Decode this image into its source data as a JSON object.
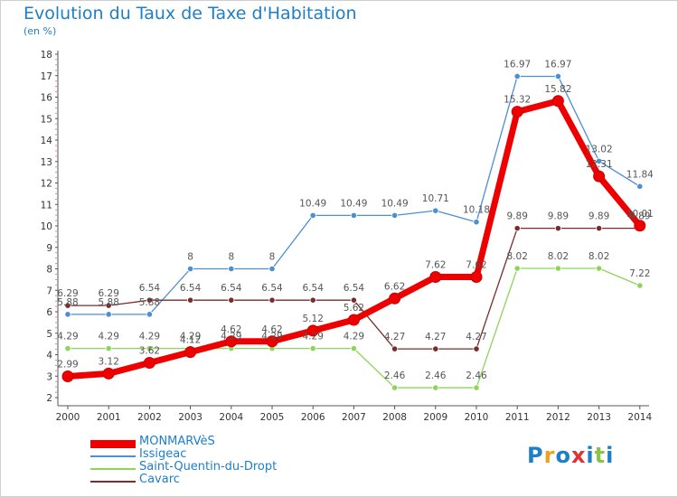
{
  "header": {
    "title": "Evolution du Taux de Taxe d'Habitation",
    "unit": "(en %)"
  },
  "logo": {
    "text": "Proxiti",
    "colors": [
      "#1e7ec8",
      "#f0a020",
      "#1e7ec8",
      "#e03030",
      "#1e7ec8",
      "#8bc34a",
      "#1e7ec8"
    ]
  },
  "chart_data": {
    "type": "line",
    "title": "Evolution du Taux de Taxe d'Habitation",
    "ylabel": "(en %)",
    "ylim": [
      2,
      18
    ],
    "yticks": [
      2,
      3,
      4,
      5,
      6,
      7,
      8,
      9,
      10,
      11,
      12,
      13,
      14,
      15,
      16,
      17,
      18
    ],
    "categories": [
      "2000",
      "2001",
      "2002",
      "2003",
      "2004",
      "2005",
      "2006",
      "2007",
      "2008",
      "2009",
      "2010",
      "2011",
      "2012",
      "2013",
      "2014"
    ],
    "grid": false,
    "legend": "bottom-left",
    "series": [
      {
        "name": "MONMARVèS",
        "color": "#ee0000",
        "labels": [
          "2.99",
          "3.12",
          "3.62",
          "4.12",
          "4.62",
          "4.62",
          "5.12",
          "5.62",
          "6.62",
          "7.62",
          "7.62",
          "15.32",
          "15.82",
          "12.31",
          "10.01"
        ],
        "values": [
          2.99,
          3.12,
          3.62,
          4.12,
          4.62,
          4.62,
          5.12,
          5.62,
          6.62,
          7.62,
          7.62,
          15.32,
          15.82,
          12.31,
          10.01
        ]
      },
      {
        "name": "Issigeac",
        "color": "#4d8fd0",
        "labels": [
          "5.88",
          "5.88",
          "5.88",
          "8",
          "8",
          "8",
          "10.49",
          "10.49",
          "10.49",
          "10.71",
          "10.18",
          "16.97",
          "16.97",
          "13.02",
          "11.84"
        ],
        "values": [
          5.88,
          5.88,
          5.88,
          8,
          8,
          8,
          10.49,
          10.49,
          10.49,
          10.71,
          10.18,
          16.97,
          16.97,
          13.02,
          11.84
        ]
      },
      {
        "name": "Saint-Quentin-du-Dropt",
        "color": "#8ed45a",
        "labels": [
          "4.29",
          "4.29",
          "4.29",
          "4.29",
          "4.29",
          "4.29",
          "4.29",
          "4.29",
          "2.46",
          "2.46",
          "2.46",
          "8.02",
          "8.02",
          "8.02",
          "7.22"
        ],
        "values": [
          4.29,
          4.29,
          4.29,
          4.29,
          4.29,
          4.29,
          4.29,
          4.29,
          2.46,
          2.46,
          2.46,
          8.02,
          8.02,
          8.02,
          7.22
        ]
      },
      {
        "name": "Cavarc",
        "color": "#7a2b2b",
        "labels": [
          "6.29",
          "6.29",
          "6.54",
          "6.54",
          "6.54",
          "6.54",
          "6.54",
          "6.54",
          "4.27",
          "4.27",
          "4.27",
          "9.89",
          "9.89",
          "9.89",
          "9.89"
        ],
        "values": [
          6.29,
          6.29,
          6.54,
          6.54,
          6.54,
          6.54,
          6.54,
          6.54,
          4.27,
          4.27,
          4.27,
          9.89,
          9.89,
          9.89,
          9.89
        ]
      }
    ]
  }
}
